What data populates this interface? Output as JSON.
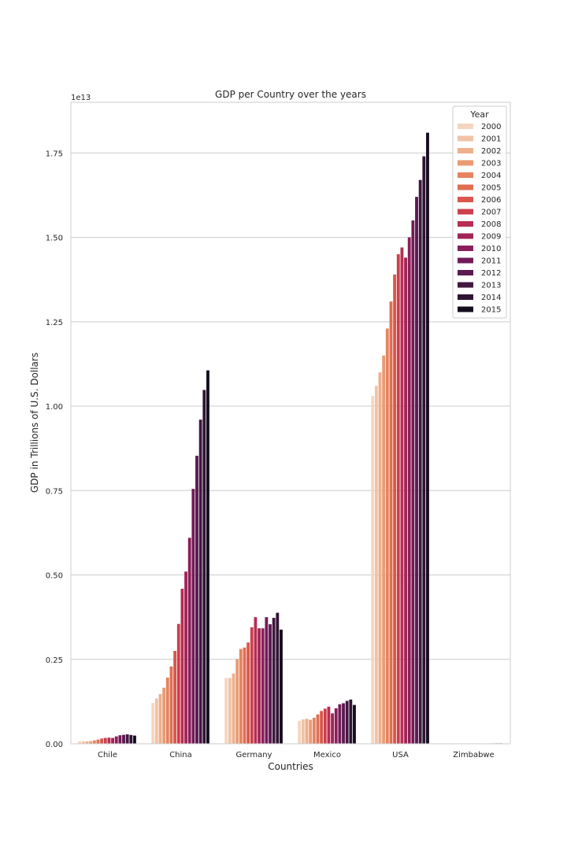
{
  "chart_data": {
    "type": "bar",
    "title": "GDP per Country over the years",
    "xlabel": "Countries",
    "ylabel": "GDP in Trillions of U.S. Dollars",
    "y_offset_text": "1e13",
    "ylim": [
      0,
      1.9
    ],
    "yticks": [
      "0.00",
      "0.25",
      "0.50",
      "0.75",
      "1.00",
      "1.25",
      "1.50",
      "1.75"
    ],
    "grid": true,
    "legend_title": "Year",
    "legend_position": "top-right",
    "categories": [
      "Chile",
      "China",
      "Germany",
      "Mexico",
      "USA",
      "Zimbabwe"
    ],
    "series": [
      {
        "name": "2000",
        "color": "#f5d5c1",
        "values": [
          0.0078,
          0.121,
          0.195,
          0.068,
          1.03,
          0.0007
        ]
      },
      {
        "name": "2001",
        "color": "#f1c3a6",
        "values": [
          0.0071,
          0.134,
          0.195,
          0.072,
          1.06,
          0.0007
        ]
      },
      {
        "name": "2002",
        "color": "#eeaf8c",
        "values": [
          0.007,
          0.147,
          0.208,
          0.074,
          1.1,
          0.0006
        ]
      },
      {
        "name": "2003",
        "color": "#ea9b74",
        "values": [
          0.0076,
          0.166,
          0.251,
          0.071,
          1.15,
          0.0006
        ]
      },
      {
        "name": "2004",
        "color": "#e58360",
        "values": [
          0.01,
          0.196,
          0.281,
          0.077,
          1.23,
          0.0006
        ]
      },
      {
        "name": "2005",
        "color": "#e06e53",
        "values": [
          0.0123,
          0.229,
          0.285,
          0.087,
          1.31,
          0.0006
        ]
      },
      {
        "name": "2006",
        "color": "#d9574c",
        "values": [
          0.0155,
          0.275,
          0.3,
          0.097,
          1.39,
          0.0005
        ]
      },
      {
        "name": "2007",
        "color": "#cc3f4d",
        "values": [
          0.0173,
          0.355,
          0.345,
          0.104,
          1.45,
          0.0005
        ]
      },
      {
        "name": "2008",
        "color": "#b82d53",
        "values": [
          0.018,
          0.459,
          0.375,
          0.11,
          1.47,
          0.0004
        ]
      },
      {
        "name": "2009",
        "color": "#a12558",
        "values": [
          0.0172,
          0.51,
          0.342,
          0.09,
          1.44,
          0.0009
        ]
      },
      {
        "name": "2010",
        "color": "#8b1f5a",
        "values": [
          0.0218,
          0.61,
          0.342,
          0.105,
          1.5,
          0.001
        ]
      },
      {
        "name": "2011",
        "color": "#731b58",
        "values": [
          0.0252,
          0.755,
          0.375,
          0.117,
          1.55,
          0.0012
        ]
      },
      {
        "name": "2012",
        "color": "#5b1a51",
        "values": [
          0.0265,
          0.853,
          0.354,
          0.12,
          1.62,
          0.0012
        ]
      },
      {
        "name": "2013",
        "color": "#441742",
        "values": [
          0.0278,
          0.96,
          0.373,
          0.127,
          1.67,
          0.0013
        ]
      },
      {
        "name": "2014",
        "color": "#2f1532",
        "values": [
          0.026,
          1.048,
          0.388,
          0.131,
          1.74,
          0.0014
        ]
      },
      {
        "name": "2015",
        "color": "#140d1e",
        "values": [
          0.0242,
          1.106,
          0.338,
          0.115,
          1.81,
          0.0014
        ]
      }
    ]
  }
}
